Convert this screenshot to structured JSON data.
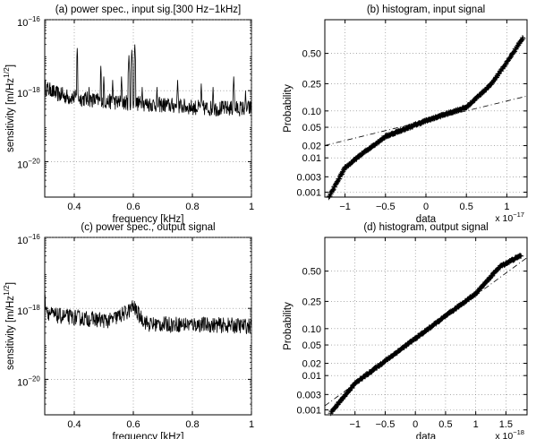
{
  "chart_data": [
    {
      "type": "line",
      "title": "(a) power spec., input sig.[300 Hz−1kHz]",
      "xlabel": "frequency [kHz]",
      "ylabel": "sensitivity [m/Hz",
      "ylabel_sup": "1/2",
      "ylabel_close": "]",
      "xlim": [
        0.3,
        1.0
      ],
      "yscale": "log",
      "ylim_exp": [
        -21,
        -16
      ],
      "xticks": [
        0.4,
        0.6,
        0.8,
        1.0
      ],
      "xtick_labels": [
        "0.4",
        "0.6",
        "0.8",
        "1"
      ],
      "yticks_exp": [
        -20,
        -18,
        -16
      ],
      "ytick_labels": [
        "10",
        "10",
        "10"
      ],
      "ytick_sups": [
        "−20",
        "−18",
        "−16"
      ],
      "grid": true,
      "series": [
        {
          "baseline_exp": [
            [
              0.3,
              -17.9
            ],
            [
              0.33,
              -18.05
            ],
            [
              0.36,
              -18.15
            ],
            [
              0.5,
              -18.3
            ],
            [
              0.7,
              -18.4
            ],
            [
              0.85,
              -18.5
            ],
            [
              1.0,
              -18.5
            ]
          ],
          "peaks": [
            [
              0.32,
              -17.9
            ],
            [
              0.36,
              -17.9
            ],
            [
              0.41,
              -16.8
            ],
            [
              0.45,
              -17.9
            ],
            [
              0.49,
              -17.3
            ],
            [
              0.5,
              -17.6
            ],
            [
              0.53,
              -17.7
            ],
            [
              0.56,
              -17.6
            ],
            [
              0.585,
              -17.0
            ],
            [
              0.595,
              -16.85
            ],
            [
              0.605,
              -16.7
            ],
            [
              0.63,
              -17.9
            ],
            [
              0.68,
              -17.9
            ],
            [
              0.75,
              -17.7
            ],
            [
              0.83,
              -17.8
            ],
            [
              0.87,
              -17.9
            ],
            [
              0.94,
              -17.6
            ],
            [
              0.98,
              -18.0
            ]
          ]
        }
      ]
    },
    {
      "type": "scatter",
      "title": "(b) histogram, input signal",
      "xlabel": "data",
      "ylabel": "Probability",
      "xlim": [
        -1.25,
        1.25
      ],
      "xticks": [
        -1,
        -0.5,
        0,
        0.5,
        1
      ],
      "xtick_labels": [
        "−1",
        "−0.5",
        "0",
        "0.5",
        "1"
      ],
      "x_multiplier": "x 10",
      "x_multiplier_exp": "−17",
      "yticks": [
        0.001,
        0.003,
        0.01,
        0.02,
        0.05,
        0.1,
        0.25,
        0.5
      ],
      "ytick_labels": [
        "0.001",
        "0.003",
        "0.01",
        "0.02",
        "0.05",
        "0.10",
        "0.25",
        "0.50"
      ],
      "grid": true,
      "series": [
        {
          "x_range": [
            -1.2,
            1.2
          ],
          "z_points": [
            [
              -1.2,
              -3.2
            ],
            [
              -1.0,
              -2.55
            ],
            [
              -0.8,
              -2.25
            ],
            [
              -0.5,
              -1.85
            ],
            [
              0,
              -1.5
            ],
            [
              0.5,
              -1.2
            ],
            [
              0.8,
              -0.7
            ],
            [
              1.0,
              -0.2
            ],
            [
              1.2,
              0.35
            ]
          ],
          "reference_line": [
            [
              -1.25,
              -2.05
            ],
            [
              1.25,
              -0.95
            ]
          ]
        }
      ]
    },
    {
      "type": "line",
      "title": "(c) power spec., output signal",
      "xlabel": "frequency [kHz]",
      "ylabel": "sensitivity [m/Hz",
      "ylabel_sup": "1/2",
      "ylabel_close": "]",
      "xlim": [
        0.3,
        1.0
      ],
      "yscale": "log",
      "ylim_exp": [
        -21,
        -16
      ],
      "xticks": [
        0.4,
        0.6,
        0.8,
        1.0
      ],
      "xtick_labels": [
        "0.4",
        "0.6",
        "0.8",
        "1"
      ],
      "yticks_exp": [
        -20,
        -18,
        -16
      ],
      "ytick_labels": [
        "10",
        "10",
        "10"
      ],
      "ytick_sups": [
        "−20",
        "−18",
        "−16"
      ],
      "grid": true,
      "series": [
        {
          "baseline_exp": [
            [
              0.3,
              -17.7
            ],
            [
              0.31,
              -18.1
            ],
            [
              0.33,
              -18.2
            ],
            [
              0.45,
              -18.3
            ],
            [
              0.52,
              -18.35
            ],
            [
              0.58,
              -18.1
            ],
            [
              0.6,
              -17.95
            ],
            [
              0.62,
              -18.2
            ],
            [
              0.65,
              -18.45
            ],
            [
              0.8,
              -18.45
            ],
            [
              1.0,
              -18.5
            ]
          ],
          "peaks": []
        }
      ]
    },
    {
      "type": "scatter",
      "title": "(d) histogram, output signal",
      "xlabel": "data",
      "ylabel": "Probability",
      "xlim": [
        -1.5,
        1.85
      ],
      "xticks": [
        -1,
        -0.5,
        0,
        0.5,
        1,
        1.5
      ],
      "xtick_labels": [
        "−1",
        "−0.5",
        "0",
        "0.5",
        "1",
        "1.5"
      ],
      "x_multiplier": "x 10",
      "x_multiplier_exp": "−18",
      "yticks": [
        0.001,
        0.003,
        0.01,
        0.02,
        0.05,
        0.1,
        0.25,
        0.5
      ],
      "ytick_labels": [
        "0.001",
        "0.003",
        "0.01",
        "0.02",
        "0.05",
        "0.10",
        "0.25",
        "0.50"
      ],
      "grid": true,
      "series": [
        {
          "x_range": [
            -1.4,
            1.75
          ],
          "z_points": [
            [
              -1.4,
              -3.15
            ],
            [
              -1.0,
              -2.5
            ],
            [
              -0.5,
              -2.0
            ],
            [
              0,
              -1.5
            ],
            [
              0.5,
              -1.0
            ],
            [
              1.0,
              -0.5
            ],
            [
              1.4,
              0.1
            ],
            [
              1.75,
              0.35
            ]
          ],
          "reference_line": [
            [
              -1.5,
              -3.0
            ],
            [
              1.85,
              0.3
            ]
          ]
        }
      ]
    }
  ]
}
